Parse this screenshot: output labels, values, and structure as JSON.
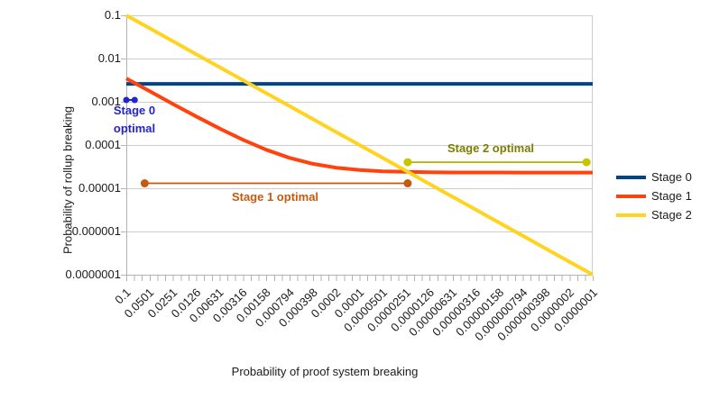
{
  "chart_data": {
    "type": "line",
    "title": "",
    "xlabel": "Probability of proof system breaking",
    "ylabel": "Probability of rollup breaking",
    "x_scale": "log-descending",
    "y_scale": "log",
    "x_range": [
      0.1,
      1e-07
    ],
    "y_range": [
      0.1,
      1e-07
    ],
    "grid": "horizontal",
    "legend_position": "right",
    "y_ticks": [
      "0.1",
      "0.01",
      "0.001",
      "0.0001",
      "0.00001",
      "0.000001",
      "0.0000001"
    ],
    "x_ticks": [
      "0.1",
      "0.0501",
      "0.0251",
      "0.0126",
      "0.00631",
      "0.00316",
      "0.00158",
      "0.000794",
      "0.000398",
      "0.0002",
      "0.0001",
      "0.0000501",
      "0.0000251",
      "0.0000126",
      "0.00000631",
      "0.00000316",
      "0.00000158",
      "0.000000794",
      "0.000000398",
      "0.0000002",
      "0.0000001"
    ],
    "x": [
      0.1,
      0.0501,
      0.0251,
      0.0126,
      0.00631,
      0.00316,
      0.00158,
      0.000794,
      0.000398,
      0.0002,
      0.0001,
      5.01e-05,
      2.51e-05,
      1.26e-05,
      6.31e-06,
      3.16e-06,
      1.58e-06,
      7.94e-07,
      3.98e-07,
      2e-07,
      1e-07
    ],
    "series": [
      {
        "name": "Stage 0",
        "color": "#004586",
        "stroke_width": 4,
        "values": [
          0.0026,
          0.0026,
          0.0026,
          0.0026,
          0.0026,
          0.0026,
          0.0026,
          0.0026,
          0.0026,
          0.0026,
          0.0026,
          0.0026,
          0.0026,
          0.0026,
          0.0026,
          0.0026,
          0.0026,
          0.0026,
          0.0026,
          0.0026,
          0.0026
        ]
      },
      {
        "name": "Stage 1",
        "color": "#FF420E",
        "stroke_width": 4,
        "values": [
          0.00347,
          0.00175,
          0.000889,
          0.000458,
          0.000241,
          0.000132,
          7.75e-05,
          5.04e-05,
          3.67e-05,
          2.99e-05,
          2.65e-05,
          2.47e-05,
          2.39e-05,
          2.34e-05,
          2.32e-05,
          2.31e-05,
          2.31e-05,
          2.3e-05,
          2.3e-05,
          2.3e-05,
          2.3e-05
        ]
      },
      {
        "name": "Stage 2",
        "color": "#FFD320",
        "stroke_width": 4,
        "values": [
          0.1,
          0.0501,
          0.0251,
          0.0126,
          0.00631,
          0.00316,
          0.00158,
          0.000794,
          0.000398,
          0.0002,
          0.0001,
          5.01e-05,
          2.51e-05,
          1.26e-05,
          6.31e-06,
          3.16e-06,
          1.58e-06,
          7.94e-07,
          3.98e-07,
          2e-07,
          1e-07
        ]
      }
    ],
    "annotations": {
      "stage0": {
        "label_line1": "Stage 0",
        "label_line2": "optimal",
        "x1": 0.1,
        "x2": 0.078,
        "y": 0.0011,
        "line_color": "#2323CF",
        "dot_color": "#2323CF",
        "text_color": "#2323CF",
        "dot_radius": 3.5,
        "line_width": 2
      },
      "stage1": {
        "label": "Stage 1 optimal",
        "x1": 0.058,
        "x2": 2.4e-05,
        "y": 1.3e-05,
        "line_color": "#C05A0F",
        "dot_color": "#C55A11",
        "text_color": "#C55A11",
        "dot_radius": 4.5,
        "line_width": 1.8
      },
      "stage2": {
        "label": "Stage 2 optimal",
        "x1": 2.4e-05,
        "x2": 1.2e-07,
        "y": 4e-05,
        "line_color": "#B3B300",
        "dot_color": "#C6C600",
        "text_color": "#7D7D00",
        "dot_radius": 4.5,
        "line_width": 1.8
      }
    }
  },
  "legend": {
    "items": [
      {
        "label": "Stage 0",
        "color": "#004586"
      },
      {
        "label": "Stage 1",
        "color": "#FF420E"
      },
      {
        "label": "Stage 2",
        "color": "#FFD320"
      }
    ]
  }
}
